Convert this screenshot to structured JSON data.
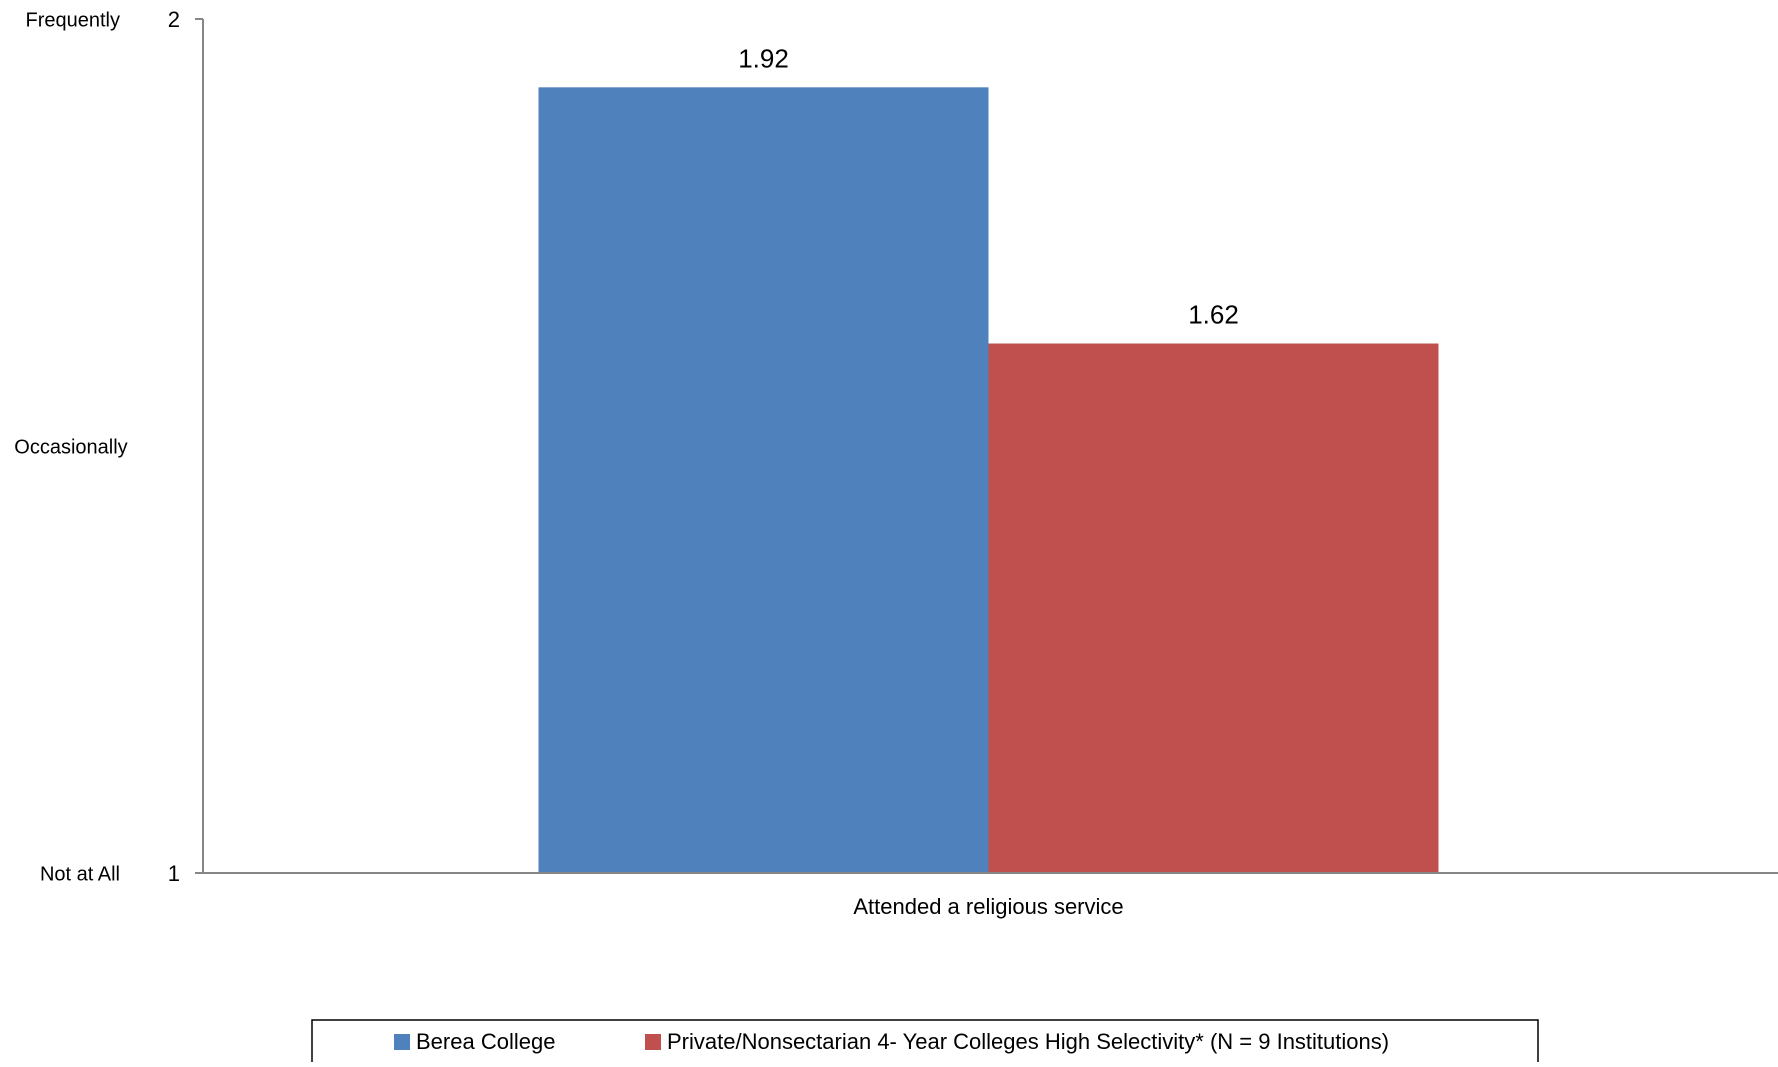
{
  "chart_data": {
    "type": "bar",
    "categories": [
      "Attended a religious service"
    ],
    "series": [
      {
        "name": "Berea College",
        "values": [
          1.92
        ],
        "color": "#4F81BD"
      },
      {
        "name": "Private/Nonsectarian 4- Year Colleges High Selectivity* (N = 9 Institutions)",
        "values": [
          1.62
        ],
        "color": "#C0504D"
      }
    ],
    "data_labels": [
      "1.92",
      "1.62"
    ],
    "ylim": [
      1,
      2
    ],
    "y_ticks": [
      {
        "value": 1,
        "label": "1"
      },
      {
        "value": 2,
        "label": "2"
      }
    ],
    "y_scale_labels": [
      {
        "value": 2,
        "label": "Frequently"
      },
      {
        "value": 1.5,
        "label": "Occasionally"
      },
      {
        "value": 1,
        "label": "Not at All"
      }
    ],
    "grid": false,
    "legend_position": "bottom",
    "axis_color": "#868686"
  }
}
